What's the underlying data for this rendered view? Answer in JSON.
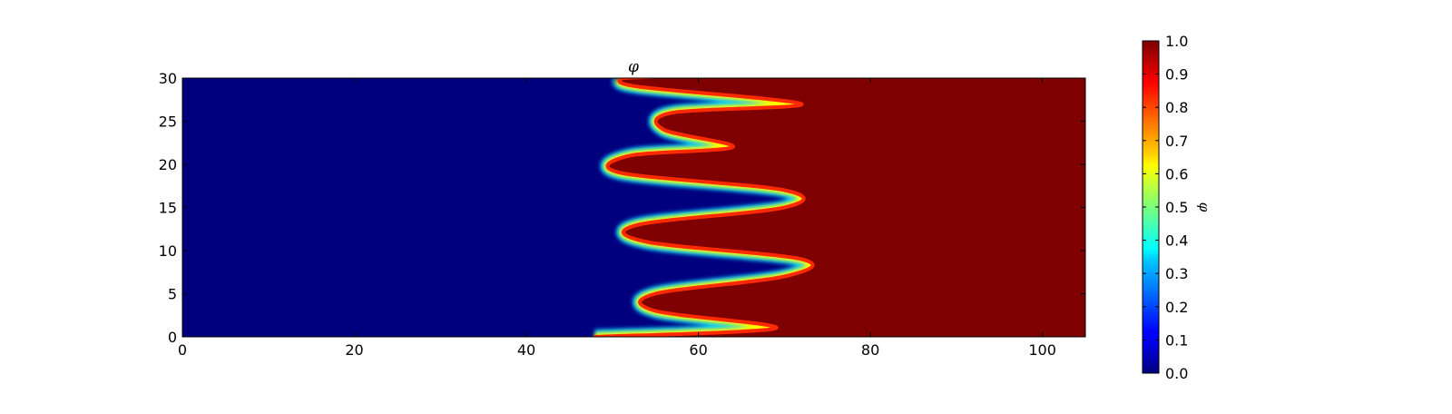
{
  "chart_data": {
    "type": "heatmap",
    "title": "φ",
    "xlabel": "",
    "ylabel": "",
    "xlim": [
      0,
      105
    ],
    "ylim": [
      0,
      30
    ],
    "xticks": [
      0,
      20,
      40,
      60,
      80,
      100
    ],
    "yticks": [
      0,
      5,
      10,
      15,
      20,
      25,
      30
    ],
    "colormap": "jet",
    "colorbar": {
      "label": "φ",
      "range": [
        0.0,
        1.0
      ],
      "ticks": [
        "0.0",
        "0.1",
        "0.2",
        "0.3",
        "0.4",
        "0.5",
        "0.6",
        "0.7",
        "0.8",
        "0.9",
        "1.0"
      ]
    },
    "field": {
      "description_value_left": 0.0,
      "description_value_right": 1.0,
      "interface_front": [
        {
          "y": 0,
          "x": 48
        },
        {
          "y": 1,
          "x": 69
        },
        {
          "y": 3,
          "x": 55
        },
        {
          "y": 5,
          "x": 55
        },
        {
          "y": 7,
          "x": 70
        },
        {
          "y": 9,
          "x": 72
        },
        {
          "y": 11,
          "x": 54
        },
        {
          "y": 13,
          "x": 53
        },
        {
          "y": 15,
          "x": 70
        },
        {
          "y": 17,
          "x": 70
        },
        {
          "y": 19,
          "x": 51
        },
        {
          "y": 21,
          "x": 52
        },
        {
          "y": 22,
          "x": 64
        },
        {
          "y": 24,
          "x": 56
        },
        {
          "y": 26,
          "x": 57
        },
        {
          "y": 27,
          "x": 72
        },
        {
          "y": 29,
          "x": 53
        },
        {
          "y": 30,
          "x": 51
        }
      ]
    }
  }
}
